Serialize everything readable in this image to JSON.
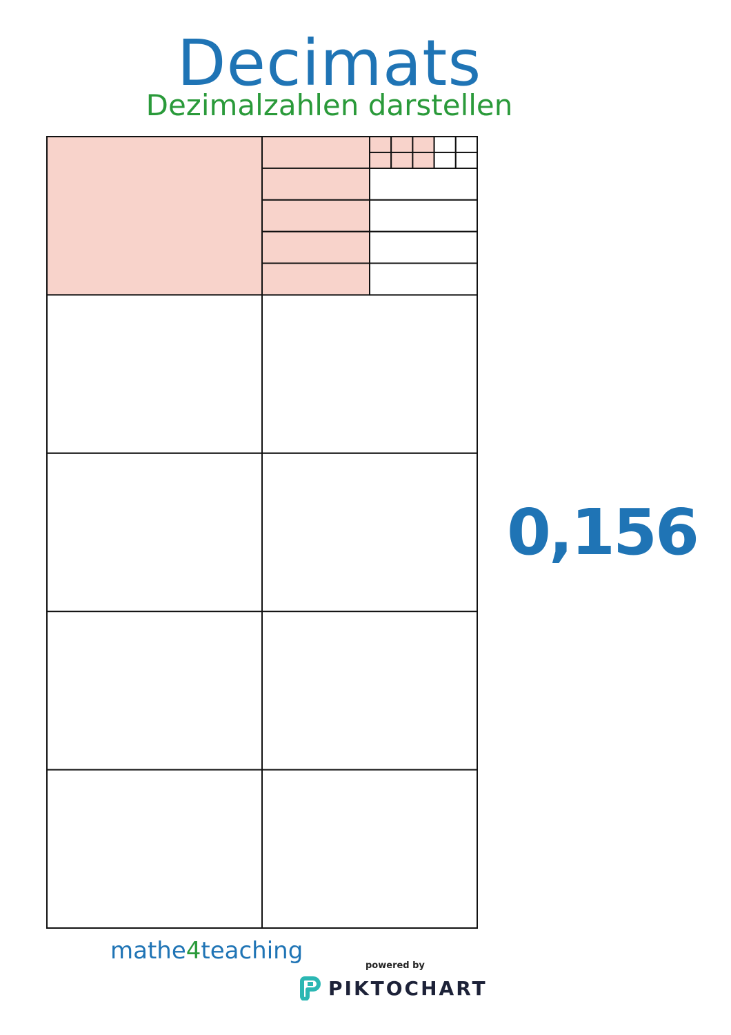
{
  "title": "Decimats",
  "subtitle": "Dezimalzahlen darstellen",
  "value": "0,156",
  "decimat": {
    "tenths_shaded": 1,
    "hundredths_shaded": 5,
    "thousandths_shaded": 6,
    "shade_color": "#f8d3cb",
    "line_color": "#111111"
  },
  "footer": {
    "brand_prefix": "mathe",
    "brand_four": "4",
    "brand_suffix": "teaching",
    "powered_by": "powered by",
    "piktochart": "PIKTOCHART"
  },
  "colors": {
    "title": "#1f74b5",
    "subtitle": "#2a9a3a",
    "logo": "#2bb7b3"
  }
}
